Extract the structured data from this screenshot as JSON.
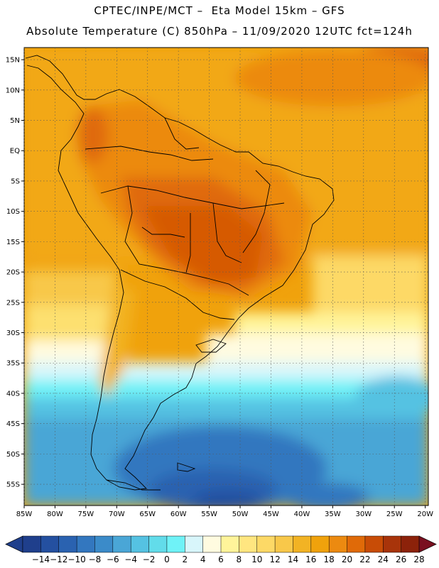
{
  "header": {
    "line1": "CPTEC/INPE/MCT –  Eta Model 15km – GFS",
    "line2": "Absolute Temperature (C) 850hPa – 11/09/2020 12UTC fct=124h"
  },
  "map": {
    "lat_labels": [
      "15N",
      "10N",
      "5N",
      "EQ",
      "5S",
      "10S",
      "15S",
      "20S",
      "25S",
      "30S",
      "35S",
      "40S",
      "45S",
      "50S",
      "55S"
    ],
    "lat_values": [
      15,
      10,
      5,
      0,
      -5,
      -10,
      -15,
      -20,
      -25,
      -30,
      -35,
      -40,
      -45,
      -50,
      -55
    ],
    "lon_labels": [
      "85W",
      "80W",
      "75W",
      "70W",
      "65W",
      "60W",
      "55W",
      "50W",
      "45W",
      "40W",
      "35W",
      "30W",
      "25W",
      "20W"
    ],
    "lon_values": [
      -85,
      -80,
      -75,
      -70,
      -65,
      -60,
      -55,
      -50,
      -45,
      -40,
      -35,
      -30,
      -25,
      -20
    ],
    "extent": {
      "lon_min": -85,
      "lon_max": -19.5,
      "lat_min": -58.5,
      "lat_max": 17
    }
  },
  "colorbar": {
    "labels": [
      "-14",
      "-12",
      "-10",
      "-8",
      "-6",
      "-4",
      "-2",
      "0",
      "2",
      "4",
      "6",
      "8",
      "10",
      "12",
      "14",
      "16",
      "18",
      "20",
      "22",
      "24",
      "26",
      "28"
    ],
    "colors": [
      "#1f3f8c",
      "#2450a0",
      "#2a62b0",
      "#3377bf",
      "#3b8bc9",
      "#4aa6d6",
      "#55c2e2",
      "#62dcea",
      "#6ff2f7",
      "#d8f6fb",
      "#fffbe0",
      "#fff49a",
      "#ffe680",
      "#fdd966",
      "#f8c84a",
      "#f2b324",
      "#f0a20c",
      "#ec8a10",
      "#e06a08",
      "#c84c06",
      "#a8340a",
      "#8c220a"
    ],
    "low_arrow_color": "#1f3f8c",
    "high_arrow_color": "#7a1020"
  }
}
